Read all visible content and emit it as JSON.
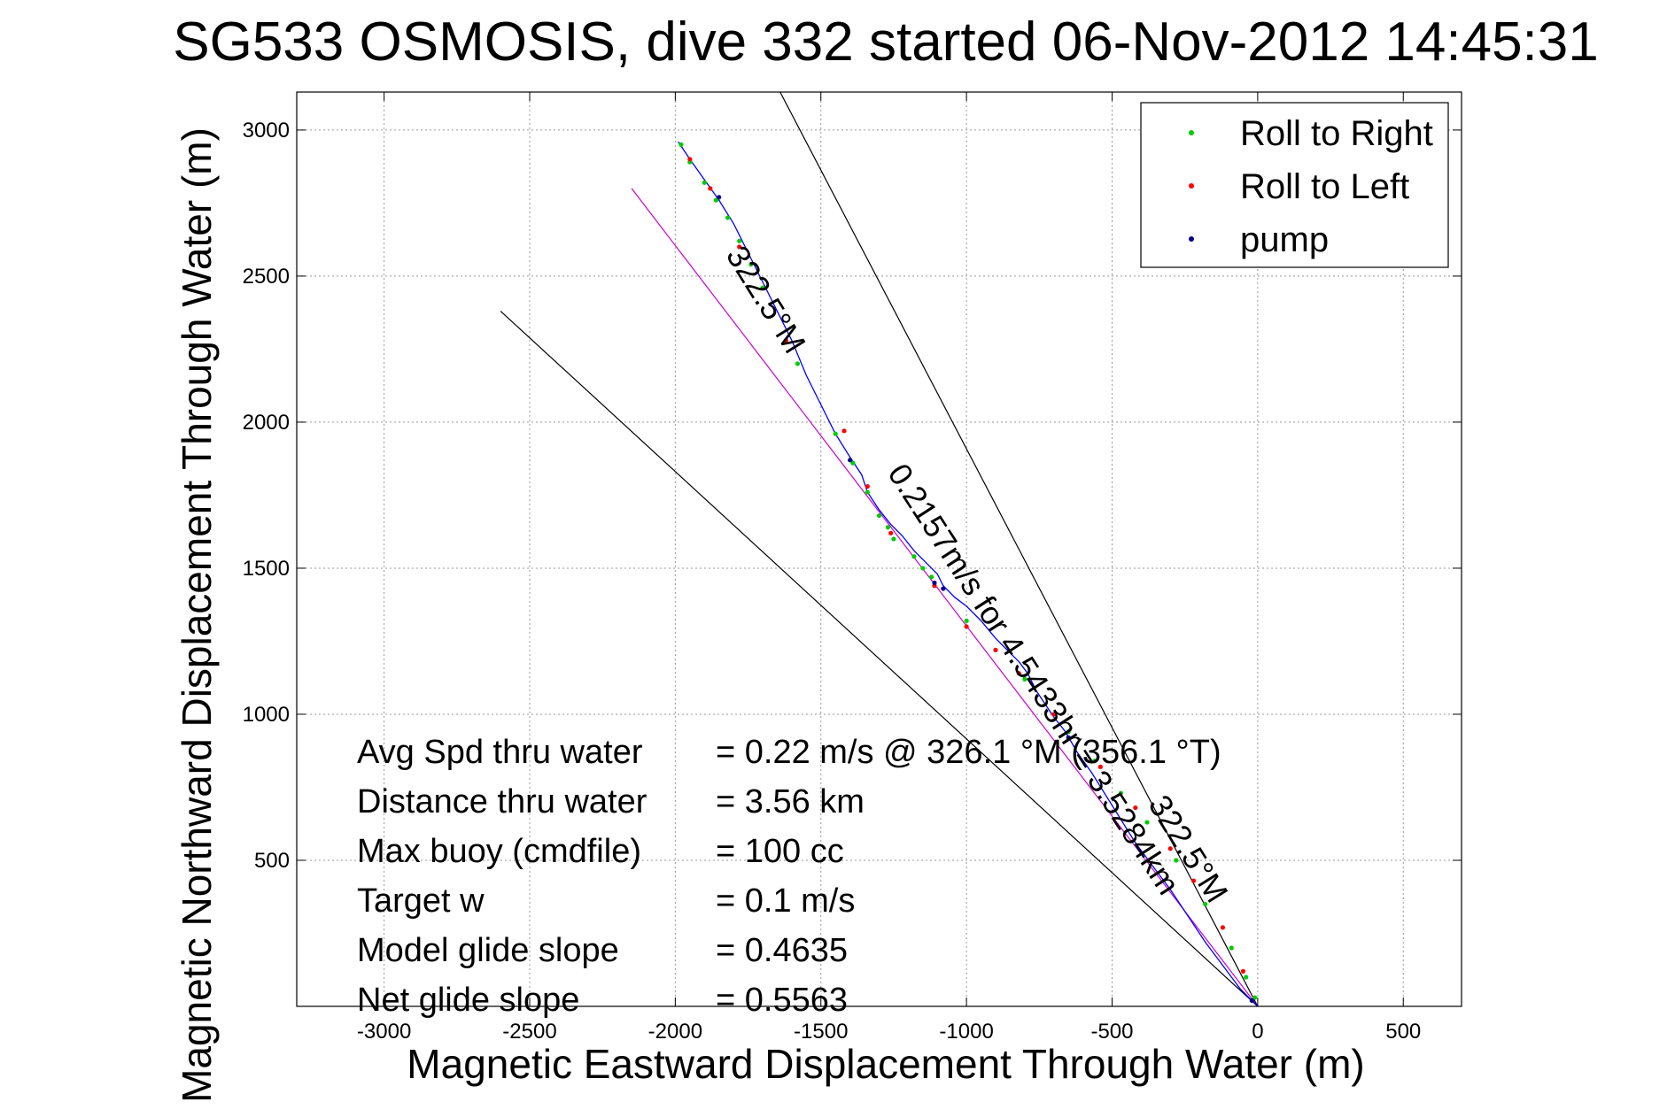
{
  "chart_data": {
    "type": "scatter",
    "title": "SG533 OSMOSIS, dive 332 started 06-Nov-2012 14:45:31",
    "xlabel": "Magnetic Eastward Displacement Through Water (m)",
    "ylabel": "Magnetic Northward Displacement Through Water (m)",
    "xlim": [
      -3300,
      700
    ],
    "ylim": [
      0,
      3130
    ],
    "xticks": [
      -3000,
      -2500,
      -2000,
      -1500,
      -1000,
      -500,
      0,
      500
    ],
    "yticks": [
      500,
      1000,
      1500,
      2000,
      2500,
      3000
    ],
    "grid": true,
    "legend_position": "top-right",
    "series": [
      {
        "name": "Roll to Right",
        "color": "#00cc00",
        "marker": "dot",
        "x": [
          -1980,
          -1950,
          -1900,
          -1860,
          -1820,
          -1780,
          -1740,
          -1700,
          -1580,
          -1450,
          -1390,
          -1340,
          -1300,
          -1270,
          -1250,
          -1180,
          -1150,
          -1120,
          -1000,
          -800,
          -650,
          -560,
          -470,
          -380,
          -280,
          -180,
          -90,
          -40,
          -10
        ],
        "y": [
          2950,
          2890,
          2820,
          2760,
          2700,
          2620,
          2540,
          2460,
          2200,
          1960,
          1860,
          1760,
          1680,
          1640,
          1600,
          1540,
          1500,
          1470,
          1320,
          1120,
          940,
          840,
          730,
          630,
          500,
          350,
          200,
          100,
          30
        ]
      },
      {
        "name": "Roll to Left",
        "color": "#ff0000",
        "marker": "dot",
        "x": [
          -1950,
          -1880,
          -1780,
          -1620,
          -1420,
          -1340,
          -1260,
          -1110,
          -1000,
          -900,
          -820,
          -700,
          -540,
          -420,
          -300,
          -220,
          -120,
          -50
        ],
        "y": [
          2900,
          2800,
          2600,
          2280,
          1970,
          1780,
          1620,
          1440,
          1300,
          1220,
          1140,
          1000,
          820,
          680,
          540,
          430,
          270,
          120
        ]
      },
      {
        "name": "pump",
        "color": "#000088",
        "marker": "dot",
        "x": [
          -1850,
          -1400,
          -1110,
          -1080,
          -650,
          -20
        ],
        "y": [
          2770,
          1870,
          1450,
          1430,
          920,
          20
        ]
      }
    ],
    "track": {
      "x": [
        -1990,
        -1950,
        -1900,
        -1850,
        -1800,
        -1750,
        -1700,
        -1650,
        -1600,
        -1550,
        -1500,
        -1450,
        -1400,
        -1360,
        -1340,
        -1300,
        -1260,
        -1220,
        -1180,
        -1140,
        -1100,
        -1080,
        -1040,
        -1000,
        -950,
        -900,
        -860,
        -820,
        -790,
        -760,
        -740,
        -700,
        -660,
        -620,
        -570,
        -520,
        -470,
        -420,
        -360,
        -300,
        -240,
        -180,
        -120,
        -60,
        0
      ],
      "y": [
        2960,
        2900,
        2830,
        2760,
        2680,
        2580,
        2480,
        2380,
        2280,
        2160,
        2060,
        1960,
        1880,
        1820,
        1760,
        1700,
        1650,
        1610,
        1560,
        1520,
        1480,
        1440,
        1400,
        1370,
        1320,
        1260,
        1220,
        1180,
        1140,
        1080,
        1050,
        990,
        940,
        870,
        800,
        720,
        640,
        560,
        480,
        400,
        310,
        220,
        140,
        60,
        0
      ]
    },
    "reference_lines": [
      {
        "color": "#cc00cc",
        "x": [
          0,
          -2150
        ],
        "y": [
          0,
          2800
        ]
      },
      {
        "color": "#000000",
        "x": [
          0,
          -2600
        ],
        "y": [
          0,
          2380
        ]
      },
      {
        "color": "#000000",
        "x": [
          0,
          -1640
        ],
        "y": [
          0,
          3130
        ]
      }
    ],
    "rotated_labels": [
      {
        "text": "322.5°M",
        "x": -1720,
        "y": 2400,
        "angle": 58
      },
      {
        "text": "0.2157m/s for 4.5433hr = 3.5284km",
        "x": -800,
        "y": 1100,
        "angle": 57
      },
      {
        "text": "322.5°M",
        "x": -270,
        "y": 520,
        "angle": 58
      }
    ],
    "annotations": [
      {
        "label": "Avg Spd thru water",
        "value": "=  0.22 m/s @ 326.1 °M (356.1 °T)"
      },
      {
        "label": "Distance thru water",
        "value": "=  3.56 km"
      },
      {
        "label": "Max buoy (cmdfile)",
        "value": "= 100 cc"
      },
      {
        "label": "Target w",
        "value": "= 0.1 m/s"
      },
      {
        "label": "Model glide slope",
        "value": "= 0.4635"
      },
      {
        "label": "Net glide slope",
        "value": "= 0.5563"
      }
    ]
  }
}
